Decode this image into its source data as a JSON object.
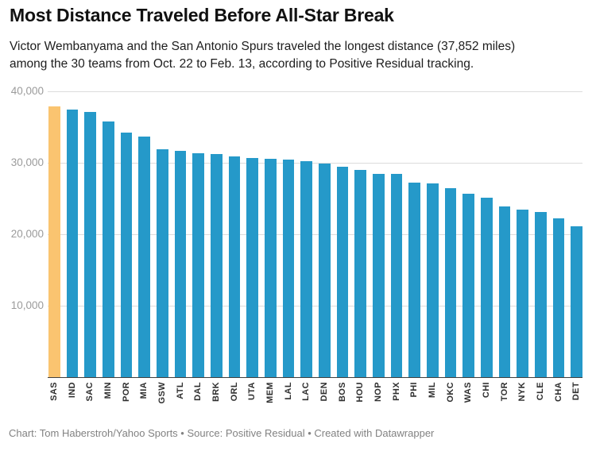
{
  "header": {
    "title": "Most Distance Traveled Before All-Star Break",
    "subtitle_line1": "Victor Wembanyama and the San Antonio Spurs traveled the longest distance (37,852 miles)",
    "subtitle_line2": "among the 30 teams from Oct. 22 to Feb. 13, according to Positive Residual tracking."
  },
  "chart_data": {
    "type": "bar",
    "title": "Most Distance Traveled Before All-Star Break",
    "subtitle": "Victor Wembanyama and the San Antonio Spurs traveled the longest distance (37,852 miles) among the 30 teams from Oct. 22 to Feb. 13, according to Positive Residual tracking.",
    "xlabel": "",
    "ylabel": "",
    "ylim": [
      0,
      40000
    ],
    "grid": true,
    "legend_position": "none",
    "bar_color": "#2599c9",
    "highlight_color": "#fac470",
    "highlight_category": "SAS",
    "yticks": [
      {
        "value": 40000,
        "label": "40,000"
      },
      {
        "value": 30000,
        "label": "30,000"
      },
      {
        "value": 20000,
        "label": "20,000"
      },
      {
        "value": 10000,
        "label": "10,000"
      }
    ],
    "categories": [
      "SAS",
      "IND",
      "SAC",
      "MIN",
      "POR",
      "MIA",
      "GSW",
      "ATL",
      "DAL",
      "BRK",
      "ORL",
      "UTA",
      "MEM",
      "LAL",
      "LAC",
      "DEN",
      "BOS",
      "HOU",
      "NOP",
      "PHX",
      "PHI",
      "MIL",
      "OKC",
      "WAS",
      "CHI",
      "TOR",
      "NYK",
      "CLE",
      "CHA",
      "DET"
    ],
    "values": [
      37852,
      37500,
      37100,
      35800,
      34200,
      33700,
      31900,
      31700,
      31300,
      31200,
      30900,
      30700,
      30550,
      30400,
      30200,
      29900,
      29500,
      29000,
      28500,
      28400,
      27200,
      27100,
      26400,
      25700,
      25100,
      23900,
      23400,
      23100,
      22200,
      21100
    ]
  },
  "footer": {
    "credit": "Chart: Tom Haberstroh/Yahoo Sports • Source: Positive Residual • Created with Datawrapper"
  }
}
